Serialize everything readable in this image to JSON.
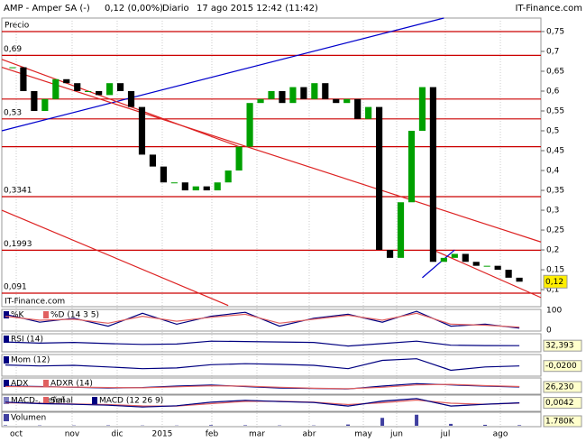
{
  "header": {
    "symbol": "AMP - Amper SA (-)",
    "quote": "0,12 (0,00%)",
    "period": "Diario",
    "datetime": "17 ago 2015 12:42 (11:42)",
    "site": "IT-Finance.com"
  },
  "chart_data": {
    "type": "candlestick",
    "panel_label": "Precio",
    "watermark": "IT-Finance.com",
    "x": [
      0,
      1,
      2,
      3,
      4,
      5,
      6,
      7,
      8,
      9,
      10,
      11,
      12,
      13,
      14,
      15,
      16,
      17,
      18,
      19,
      20,
      21,
      22,
      23,
      24,
      25,
      26,
      27,
      28,
      29,
      30,
      31,
      32,
      33,
      34,
      35,
      36,
      37,
      38,
      39,
      40,
      41,
      42,
      43,
      44,
      45,
      46,
      47
    ],
    "values": [
      0.66,
      0.6,
      0.55,
      0.58,
      0.63,
      0.62,
      0.6,
      0.6,
      0.59,
      0.62,
      0.6,
      0.56,
      0.44,
      0.41,
      0.37,
      0.37,
      0.35,
      0.36,
      0.35,
      0.37,
      0.4,
      0.46,
      0.57,
      0.58,
      0.6,
      0.57,
      0.61,
      0.58,
      0.62,
      0.58,
      0.57,
      0.58,
      0.53,
      0.56,
      0.2,
      0.18,
      0.32,
      0.5,
      0.61,
      0.17,
      0.18,
      0.19,
      0.17,
      0.16,
      0.16,
      0.15,
      0.13,
      0.12
    ],
    "up_color": "#00a000",
    "down_color": "#000000",
    "last": 0.12,
    "last_label": "0,12",
    "xlim": [
      -1,
      49
    ],
    "ylim": [
      0.057,
      0.784
    ],
    "xticks": [
      {
        "value": 0.34,
        "label": "oct"
      },
      {
        "value": 5.52,
        "label": "nov"
      },
      {
        "value": 9.7,
        "label": "dic"
      },
      {
        "value": 13.88,
        "label": "2015"
      },
      {
        "value": 18.48,
        "label": "feb"
      },
      {
        "value": 22.66,
        "label": "mar"
      },
      {
        "value": 27.51,
        "label": "abr"
      },
      {
        "value": 32.53,
        "label": "may"
      },
      {
        "value": 35.62,
        "label": "jun"
      },
      {
        "value": 40.14,
        "label": "jul"
      },
      {
        "value": 45.24,
        "label": "ago"
      }
    ],
    "yticks": [
      {
        "value": 0.75,
        "label": "0,75"
      },
      {
        "value": 0.7,
        "label": "0,7"
      },
      {
        "value": 0.65,
        "label": "0,65"
      },
      {
        "value": 0.6,
        "label": "0,6"
      },
      {
        "value": 0.55,
        "label": "0,55"
      },
      {
        "value": 0.5,
        "label": "0,5"
      },
      {
        "value": 0.45,
        "label": "0,45"
      },
      {
        "value": 0.4,
        "label": "0,4"
      },
      {
        "value": 0.35,
        "label": "0,35"
      },
      {
        "value": 0.3,
        "label": "0,3"
      },
      {
        "value": 0.25,
        "label": "0,25"
      },
      {
        "value": 0.2,
        "label": "0,2"
      },
      {
        "value": 0.15,
        "label": "0,15"
      },
      {
        "value": 0.1,
        "label": "0,1"
      }
    ],
    "levels": [
      0.75,
      0.69,
      0.58,
      0.53,
      0.46,
      0.3341,
      0.1993,
      0.091
    ],
    "level_labels": [
      null,
      "0,69",
      null,
      "0,53",
      null,
      "0,3341",
      "0,1993",
      "0,091"
    ],
    "level_color": "#cc0000",
    "trend_lines": [
      {
        "color": "#0000cc",
        "x": [
          -1,
          40
        ],
        "y": [
          0.5,
          0.784
        ]
      },
      {
        "color": "#dd2222",
        "x": [
          -1,
          21
        ],
        "y": [
          0.68,
          0.46
        ]
      },
      {
        "color": "#dd2222",
        "x": [
          -1,
          49
        ],
        "y": [
          0.66,
          0.22
        ]
      },
      {
        "color": "#dd2222",
        "x": [
          -1,
          20
        ],
        "y": [
          0.3,
          0.06
        ]
      },
      {
        "color": "#dd2222",
        "x": [
          39,
          49
        ],
        "y": [
          0.2,
          0.08
        ]
      },
      {
        "color": "#0000cc",
        "x": [
          38,
          41
        ],
        "y": [
          0.13,
          0.2
        ]
      }
    ],
    "indicators": [
      {
        "series": [
          {
            "name": "%K",
            "color": "#000080",
            "values": [
              80,
              40,
              60,
              20,
              85,
              30,
              70,
              90,
              20,
              60,
              80,
              40,
              95,
              20,
              30,
              10
            ]
          },
          {
            "name": "%D (14 3 5)",
            "color": "#e06060",
            "values": [
              70,
              50,
              55,
              35,
              70,
              45,
              65,
              80,
              35,
              55,
              75,
              50,
              85,
              30,
              25,
              15
            ]
          }
        ],
        "ylim": [
          0,
          100
        ],
        "yticks": [
          100,
          0
        ]
      },
      {
        "series": [
          {
            "name": "RSI (14)",
            "color": "#000080",
            "values": [
              55,
              48,
              52,
              45,
              40,
              42,
              60,
              58,
              55,
              52,
              30,
              45,
              60,
              35,
              33,
              32.393
            ]
          }
        ],
        "ylim": [
          0,
          100
        ],
        "last": 32.393,
        "last_label": "32,393"
      },
      {
        "series": [
          {
            "name": "Mom (12)",
            "color": "#000080",
            "values": [
              0.01,
              -0.02,
              0,
              -0.05,
              -0.1,
              -0.08,
              0.02,
              0.05,
              0.03,
              0,
              -0.1,
              0.15,
              0.2,
              -0.15,
              -0.05,
              -0.02
            ]
          }
        ],
        "ylim": [
          -0.3,
          0.3
        ],
        "last": -0.02,
        "last_label": "-0,0200"
      },
      {
        "series": [
          {
            "name": "ADX",
            "color": "#000080",
            "values": [
              30,
              28,
              25,
              22,
              24,
              30,
              34,
              28,
              22,
              20,
              18,
              30,
              40,
              35,
              30,
              26.23
            ]
          },
          {
            "name": "ADXR (14)",
            "color": "#e06060",
            "values": [
              28,
              27,
              26,
              24,
              23,
              27,
              31,
              30,
              25,
              21,
              19,
              25,
              35,
              37,
              32,
              28
            ]
          }
        ],
        "ylim": [
          0,
          60
        ],
        "last": 26.23,
        "last_label": "26,230"
      },
      {
        "series": [
          {
            "name": "MACD-, señal",
            "color": "#8080c0",
            "values": [
              0.01,
              -0.005,
              -0.01,
              -0.02,
              -0.04,
              -0.03,
              0.01,
              0.03,
              0.02,
              0.01,
              -0.03,
              0.02,
              0.05,
              -0.03,
              -0.01,
              0.0042
            ]
          },
          {
            "name": "Señal",
            "color": "#e06060",
            "values": [
              0.005,
              0,
              -0.008,
              -0.015,
              -0.03,
              -0.032,
              -0.005,
              0.02,
              0.022,
              0.012,
              -0.015,
              0.005,
              0.035,
              0.0,
              -0.012,
              0.001
            ]
          },
          {
            "name": "MACD (12 26 9)",
            "color": "#000080",
            "values": [
              0.012,
              -0.004,
              -0.012,
              -0.022,
              -0.042,
              -0.028,
              0.012,
              0.032,
              0.018,
              0.008,
              -0.032,
              0.024,
              0.052,
              -0.032,
              -0.012,
              0.0042
            ]
          }
        ],
        "ylim": [
          -0.08,
          0.08
        ],
        "last": 0.0042,
        "last_label": "0,0042"
      },
      {
        "series": [
          {
            "name": "Volumen",
            "color": "#4040a0",
            "values": [
              1500000,
              1000000,
              900000,
              1200000,
              800000,
              700000,
              2000000,
              1500000,
              1000000,
              900000,
              4000000,
              25000000,
              35000000,
              6000000,
              3000000,
              1780000
            ]
          }
        ],
        "ylim": [
          0,
          40000000
        ],
        "last": 1780000,
        "last_label": "1.780K",
        "bars": true
      }
    ]
  }
}
